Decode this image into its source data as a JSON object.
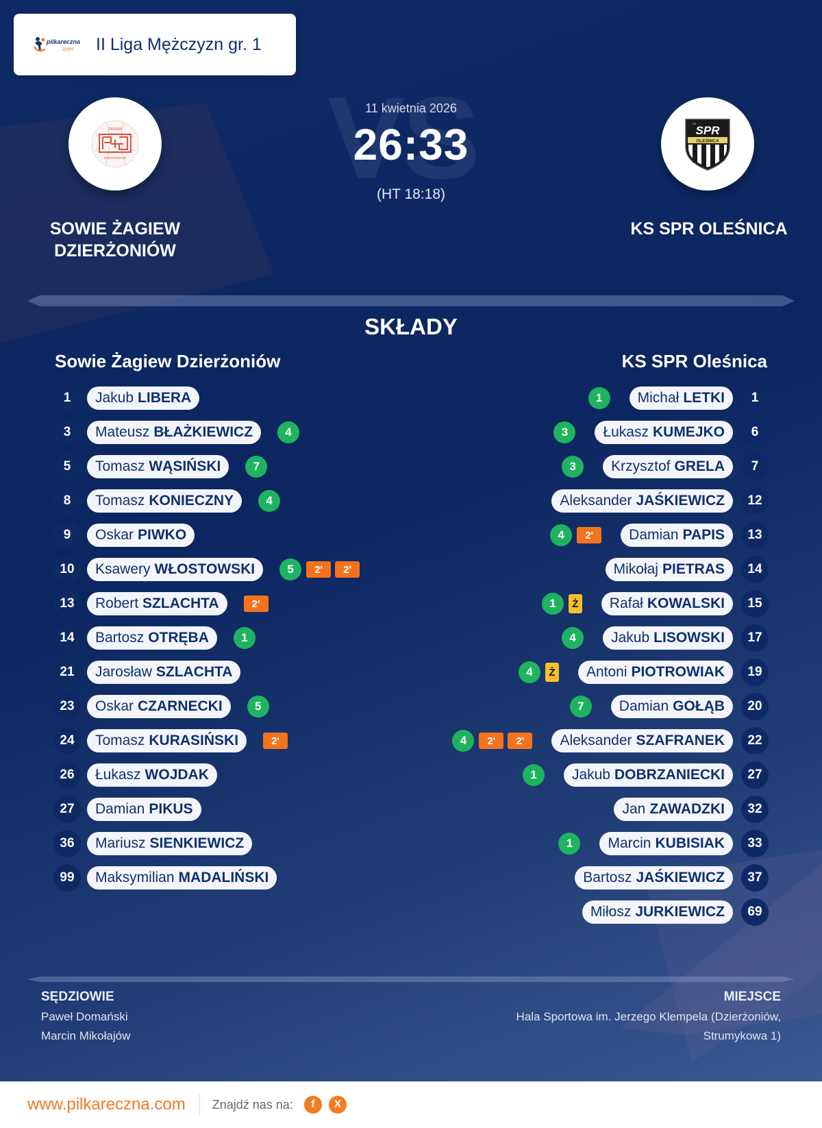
{
  "header": {
    "brand": "pilkareczna.com",
    "league": "II Liga Mężczyzn gr. 1"
  },
  "match": {
    "date": "11 kwietnia 2026",
    "score": "26:33",
    "halftime": "(HT 18:18)",
    "vs_watermark": "VS",
    "home_team": "SOWIE ŻAGIEW DZIERŻONIÓW",
    "home_team_line1": "SOWIE ŻAGIEW",
    "home_team_line2": "DZIERŻONIÓW",
    "away_team": "KS SPR OLEŚNICA"
  },
  "colors": {
    "background": "#0b2660",
    "goal": "#1fb35f",
    "penalty_2min": "#f4731c",
    "yellow_card": "#f6c02c",
    "accent": "#f07a22"
  },
  "lineups": {
    "title": "SKŁADY",
    "home": {
      "name": "Sowie Żagiew Dzierżoniów",
      "players": [
        {
          "number": "1",
          "first": "Jakub",
          "last": "LIBERA",
          "goals": null,
          "yellow": null,
          "penalties": []
        },
        {
          "number": "3",
          "first": "Mateusz",
          "last": "BŁAŻKIEWICZ",
          "goals": "4",
          "yellow": null,
          "penalties": []
        },
        {
          "number": "5",
          "first": "Tomasz",
          "last": "WĄSIŃSKI",
          "goals": "7",
          "yellow": null,
          "penalties": []
        },
        {
          "number": "8",
          "first": "Tomasz",
          "last": "KONIECZNY",
          "goals": "4",
          "yellow": null,
          "penalties": []
        },
        {
          "number": "9",
          "first": "Oskar",
          "last": "PIWKO",
          "goals": null,
          "yellow": null,
          "penalties": []
        },
        {
          "number": "10",
          "first": "Ksawery",
          "last": "WŁOSTOWSKI",
          "goals": "5",
          "yellow": null,
          "penalties": [
            "2'",
            "2'"
          ]
        },
        {
          "number": "13",
          "first": "Robert",
          "last": "SZLACHTA",
          "goals": null,
          "yellow": null,
          "penalties": [
            "2'"
          ]
        },
        {
          "number": "14",
          "first": "Bartosz",
          "last": "OTRĘBA",
          "goals": "1",
          "yellow": null,
          "penalties": []
        },
        {
          "number": "21",
          "first": "Jarosław",
          "last": "SZLACHTA",
          "goals": null,
          "yellow": null,
          "penalties": []
        },
        {
          "number": "23",
          "first": "Oskar",
          "last": "CZARNECKI",
          "goals": "5",
          "yellow": null,
          "penalties": []
        },
        {
          "number": "24",
          "first": "Tomasz",
          "last": "KURASIŃSKI",
          "goals": null,
          "yellow": null,
          "penalties": [
            "2'"
          ]
        },
        {
          "number": "26",
          "first": "Łukasz",
          "last": "WOJDAK",
          "goals": null,
          "yellow": null,
          "penalties": []
        },
        {
          "number": "27",
          "first": "Damian",
          "last": "PIKUS",
          "goals": null,
          "yellow": null,
          "penalties": []
        },
        {
          "number": "36",
          "first": "Mariusz",
          "last": "SIENKIEWICZ",
          "goals": null,
          "yellow": null,
          "penalties": []
        },
        {
          "number": "99",
          "first": "Maksymilian",
          "last": "MADALIŃSKI",
          "goals": null,
          "yellow": null,
          "penalties": []
        }
      ]
    },
    "away": {
      "name": "KS SPR Oleśnica",
      "players": [
        {
          "number": "1",
          "first": "Michał",
          "last": "LETKI",
          "goals": "1",
          "yellow": null,
          "penalties": []
        },
        {
          "number": "6",
          "first": "Łukasz",
          "last": "KUMEJKO",
          "goals": "3",
          "yellow": null,
          "penalties": []
        },
        {
          "number": "7",
          "first": "Krzysztof",
          "last": "GRELA",
          "goals": "3",
          "yellow": null,
          "penalties": []
        },
        {
          "number": "12",
          "first": "Aleksander",
          "last": "JAŚKIEWICZ",
          "goals": null,
          "yellow": null,
          "penalties": []
        },
        {
          "number": "13",
          "first": "Damian",
          "last": "PAPIS",
          "goals": "4",
          "yellow": null,
          "penalties": [
            "2'"
          ]
        },
        {
          "number": "14",
          "first": "Mikołaj",
          "last": "PIETRAS",
          "goals": null,
          "yellow": null,
          "penalties": []
        },
        {
          "number": "15",
          "first": "Rafał",
          "last": "KOWALSKI",
          "goals": "1",
          "yellow": "Ż",
          "penalties": []
        },
        {
          "number": "17",
          "first": "Jakub",
          "last": "LISOWSKI",
          "goals": "4",
          "yellow": null,
          "penalties": []
        },
        {
          "number": "19",
          "first": "Antoni",
          "last": "PIOTROWIAK",
          "goals": "4",
          "yellow": "Ż",
          "penalties": []
        },
        {
          "number": "20",
          "first": "Damian",
          "last": "GOŁĄB",
          "goals": "7",
          "yellow": null,
          "penalties": []
        },
        {
          "number": "22",
          "first": "Aleksander",
          "last": "SZAFRANEK",
          "goals": "4",
          "yellow": null,
          "penalties": [
            "2'",
            "2'"
          ]
        },
        {
          "number": "27",
          "first": "Jakub",
          "last": "DOBRZANIECKI",
          "goals": "1",
          "yellow": null,
          "penalties": []
        },
        {
          "number": "32",
          "first": "Jan",
          "last": "ZAWADZKI",
          "goals": null,
          "yellow": null,
          "penalties": []
        },
        {
          "number": "33",
          "first": "Marcin",
          "last": "KUBISIAK",
          "goals": "1",
          "yellow": null,
          "penalties": []
        },
        {
          "number": "37",
          "first": "Bartosz",
          "last": "JAŚKIEWICZ",
          "goals": null,
          "yellow": null,
          "penalties": []
        },
        {
          "number": "69",
          "first": "Miłosz",
          "last": "JURKIEWICZ",
          "goals": null,
          "yellow": null,
          "penalties": []
        }
      ]
    }
  },
  "officials": {
    "label": "SĘDZIOWIE",
    "referees": [
      "Paweł Domański",
      "Marcin Mikołajów"
    ]
  },
  "venue": {
    "label": "MIEJSCE",
    "text": "Hala Sportowa im. Jerzego Klempela (Dzierżoniów, Strumykowa 1)"
  },
  "footer": {
    "url": "www.pilkareczna.com",
    "find_us": "Znajdź nas na:",
    "social": [
      {
        "name": "facebook",
        "glyph": "f"
      },
      {
        "name": "x",
        "glyph": "X"
      }
    ]
  }
}
